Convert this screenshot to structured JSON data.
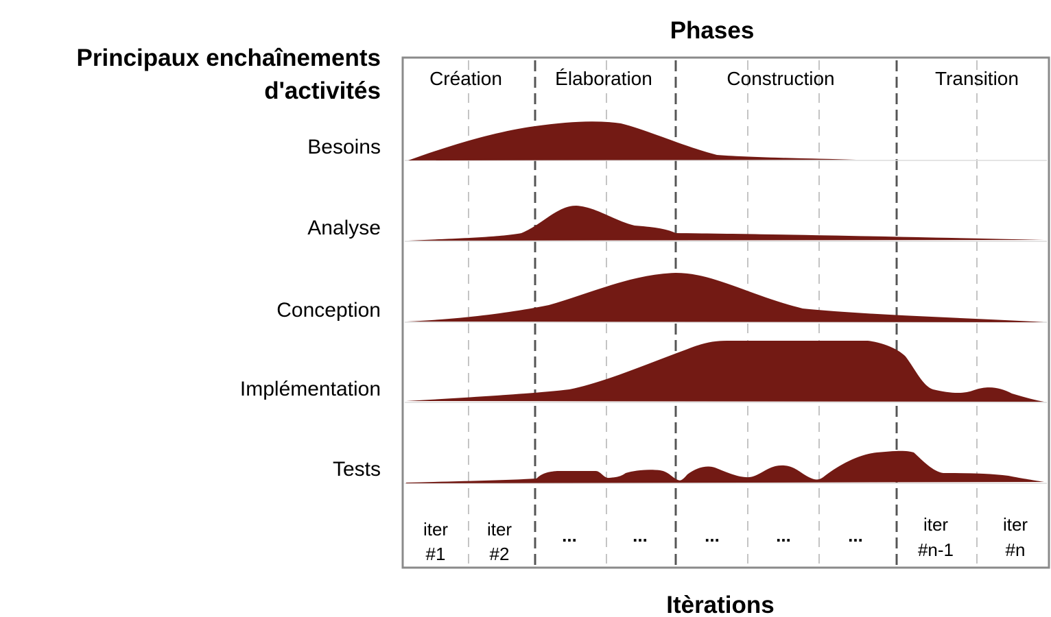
{
  "title_phases": "Phases",
  "title_workflows_line1": "Principaux enchaînements",
  "title_workflows_line2": "d'activités",
  "title_iterations": "Itèrations",
  "colors": {
    "hump": "#731a14",
    "frame": "#8a8a8a",
    "phase_divider": "#555555",
    "iter_divider": "#c4c4c4"
  },
  "phases": [
    {
      "label": "Création"
    },
    {
      "label": "Élaboration"
    },
    {
      "label": "Construction"
    },
    {
      "label": "Transition"
    }
  ],
  "workflows": [
    {
      "label": "Besoins"
    },
    {
      "label": "Analyse"
    },
    {
      "label": "Conception"
    },
    {
      "label": "Implémentation"
    },
    {
      "label": "Tests"
    }
  ],
  "iterations": [
    {
      "line1": "iter",
      "line2": "#1"
    },
    {
      "line1": "iter",
      "line2": "#2"
    },
    {
      "line1": "...",
      "line2": ""
    },
    {
      "line1": "...",
      "line2": ""
    },
    {
      "line1": "...",
      "line2": ""
    },
    {
      "line1": "...",
      "line2": ""
    },
    {
      "line1": "...",
      "line2": ""
    },
    {
      "line1": "iter",
      "line2": "#n-1"
    },
    {
      "line1": "iter",
      "line2": "#n"
    }
  ]
}
